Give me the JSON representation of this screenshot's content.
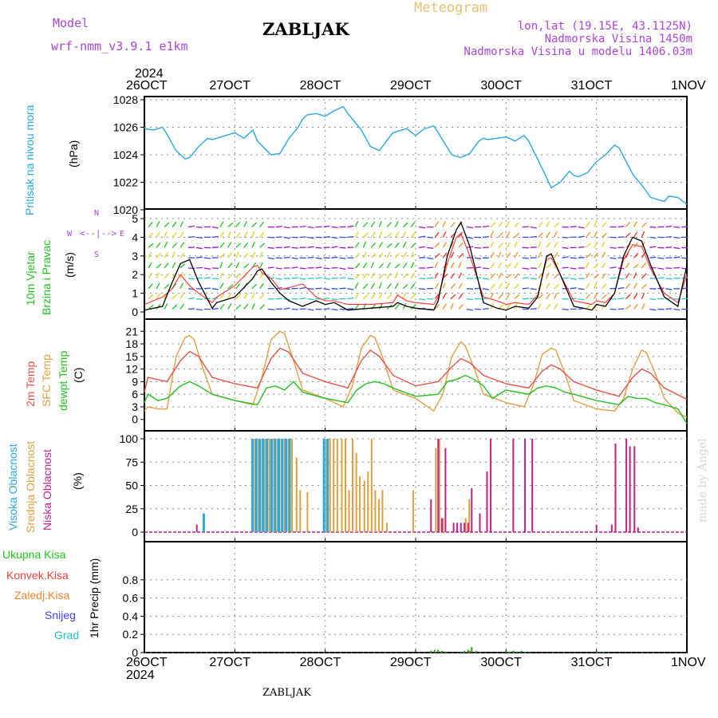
{
  "header": {
    "model_label": "Model",
    "model_name": "wrf-nmm_v3.9.1  e1km",
    "station": "ZABLJAK",
    "chart_kind": "Meteogram",
    "coords": "lon,lat (19.15E, 43.1125N)",
    "altitude": "Nadmorska Visina 1450m",
    "model_altitude": "Nadmorska Visina u modelu 1406.03m"
  },
  "footer": {
    "station": "ZABLJAK",
    "watermark": "made by Angel"
  },
  "axis": {
    "year_top": "2024",
    "year_bottom": "2024",
    "date_ticks": [
      "26OCT",
      "27OCT",
      "28OCT",
      "29OCT",
      "30OCT",
      "31OCT",
      "1NOV"
    ]
  },
  "panel_labels": {
    "pressure": {
      "name": "Pritisak na nivou mora",
      "unit": "(hPa)"
    },
    "wind": {
      "name1": "10m Vjetar",
      "name2": "Brzina i Pravac",
      "unit": "(m/s)",
      "compass": [
        "N",
        "W",
        "E",
        "S"
      ]
    },
    "temp": {
      "l1": "2m Temp",
      "l2": "SFC Temp",
      "l3": "dewpt Temp",
      "unit": "(C)"
    },
    "cloud": {
      "l1": "Visoka Oblacnost",
      "l2": "Srednja Oblacnost",
      "l3": "Niska Oblacnost",
      "unit": "(%)"
    },
    "precip": {
      "legend": [
        "Ukupna Kisa",
        "Konvek.Kisa",
        "Zaledj.Kisa",
        "Snijeg",
        "Grad"
      ],
      "unit": "1hr Precip (mm)"
    }
  },
  "colors": {
    "pressure": "#2aa8e0",
    "wind_speed": "#000000",
    "wind_gust": "#ff3030",
    "temp2m": "#e8504a",
    "sfc_temp": "#e0a040",
    "dewpt": "#22c020",
    "cloud_high": "#2aa8e0",
    "cloud_mid": "#e0a040",
    "cloud_low": "#c0208a",
    "precip_total": "#22a020",
    "precip_conv": "#e84040",
    "precip_frz": "#f08030",
    "precip_snow": "#4040e0",
    "precip_hail": "#20c0c0"
  },
  "chart_data": [
    {
      "type": "line",
      "title": "Pritisak na nivou mora",
      "ylabel": "(hPa)",
      "ylim": [
        1020,
        1028
      ],
      "yticks": [
        1020,
        1022,
        1024,
        1026,
        1028
      ],
      "x_unit": "days since 26OCT 00Z",
      "xlim": [
        0,
        6
      ],
      "series": [
        {
          "name": "Pritisak na nivou mora",
          "x": [
            0,
            0.1,
            0.2,
            0.25,
            0.35,
            0.45,
            0.5,
            0.6,
            0.7,
            0.75,
            0.85,
            1.0,
            1.1,
            1.2,
            1.25,
            1.4,
            1.5,
            1.6,
            1.7,
            1.75,
            1.8,
            1.9,
            2.0,
            2.1,
            2.2,
            2.25,
            2.4,
            2.5,
            2.6,
            2.7,
            2.75,
            2.8,
            2.9,
            3.0,
            3.1,
            3.2,
            3.25,
            3.4,
            3.5,
            3.6,
            3.7,
            3.75,
            3.8,
            3.9,
            4.0,
            4.1,
            4.2,
            4.25,
            4.4,
            4.5,
            4.6,
            4.7,
            4.75,
            4.8,
            4.9,
            5.0,
            5.1,
            5.2,
            5.25,
            5.4,
            5.5,
            5.6,
            5.7,
            5.75,
            5.8,
            5.9,
            6.0
          ],
          "y": [
            1025.9,
            1025.8,
            1026.0,
            1025.5,
            1024.3,
            1023.7,
            1023.8,
            1024.6,
            1025.2,
            1025.1,
            1025.3,
            1025.6,
            1025.2,
            1025.8,
            1025.0,
            1024.0,
            1024.1,
            1025.2,
            1026.0,
            1026.6,
            1026.9,
            1027.0,
            1026.8,
            1027.2,
            1027.5,
            1027.0,
            1025.8,
            1024.6,
            1024.3,
            1025.2,
            1025.6,
            1025.7,
            1025.9,
            1025.4,
            1025.9,
            1026.1,
            1025.6,
            1024.0,
            1023.8,
            1024.1,
            1025.0,
            1025.2,
            1025.1,
            1025.2,
            1025.3,
            1025.0,
            1025.4,
            1025.0,
            1023.0,
            1021.6,
            1022.0,
            1022.8,
            1022.5,
            1022.4,
            1022.7,
            1023.5,
            1024.0,
            1024.7,
            1024.5,
            1022.6,
            1021.8,
            1020.9,
            1020.7,
            1020.6,
            1021.0,
            1020.9,
            1020.4
          ]
        }
      ]
    },
    {
      "type": "line",
      "title": "10m Vjetar Brzina i Pravac",
      "ylabel": "(m/s)",
      "ylim": [
        0,
        5.3
      ],
      "yticks": [
        0,
        1,
        2,
        3,
        4,
        5
      ],
      "x_unit": "days since 26OCT 00Z",
      "xlim": [
        0,
        6
      ],
      "series": [
        {
          "name": "speed",
          "x": [
            0,
            0.2,
            0.3,
            0.4,
            0.5,
            0.6,
            0.75,
            0.8,
            1.0,
            1.2,
            1.25,
            1.3,
            1.4,
            1.5,
            1.6,
            1.75,
            1.9,
            2.0,
            2.1,
            2.25,
            2.5,
            2.75,
            2.8,
            2.9,
            3.0,
            3.2,
            3.25,
            3.35,
            3.45,
            3.5,
            3.6,
            3.75,
            3.9,
            4.0,
            4.1,
            4.25,
            4.35,
            4.45,
            4.5,
            4.6,
            4.75,
            4.85,
            4.95,
            5.0,
            5.1,
            5.2,
            5.3,
            5.4,
            5.5,
            5.6,
            5.75,
            5.9,
            6.0
          ],
          "y": [
            0.1,
            0.3,
            1.5,
            2.6,
            2.8,
            1.6,
            0.2,
            0.5,
            0.8,
            1.8,
            2.2,
            2.3,
            1.6,
            1.0,
            0.6,
            0.3,
            0.6,
            0.4,
            0.5,
            0.1,
            0.2,
            0.3,
            0.5,
            0.3,
            0.2,
            0.1,
            0.6,
            3.0,
            4.4,
            4.8,
            3.5,
            0.5,
            0.2,
            0.1,
            0.3,
            0.2,
            0.8,
            3.0,
            3.1,
            2.0,
            0.3,
            0.2,
            0.1,
            0.4,
            0.3,
            1.0,
            3.0,
            4.0,
            3.8,
            2.5,
            0.8,
            0.3,
            2.5
          ]
        },
        {
          "name": "gust",
          "x": [
            0,
            0.2,
            0.3,
            0.4,
            0.5,
            0.6,
            0.75,
            0.8,
            1.0,
            1.2,
            1.25,
            1.3,
            1.4,
            1.5,
            1.6,
            1.75,
            1.9,
            2.0,
            2.1,
            2.25,
            2.5,
            2.75,
            2.8,
            2.9,
            3.0,
            3.2,
            3.25,
            3.35,
            3.45,
            3.5,
            3.6,
            3.75,
            3.9,
            4.0,
            4.1,
            4.25,
            4.35,
            4.45,
            4.5,
            4.6,
            4.75,
            4.85,
            4.95,
            5.0,
            5.1,
            5.2,
            5.3,
            5.4,
            5.5,
            5.6,
            5.75,
            5.9,
            6.0
          ],
          "y": [
            0.4,
            0.8,
            1.2,
            2.0,
            1.4,
            1.0,
            0.5,
            0.8,
            1.4,
            2.4,
            2.5,
            2.1,
            1.8,
            1.2,
            1.3,
            1.5,
            0.8,
            0.6,
            0.6,
            0.4,
            0.4,
            0.5,
            0.9,
            0.6,
            0.5,
            0.4,
            0.8,
            2.6,
            4.0,
            4.2,
            3.0,
            0.8,
            0.6,
            0.4,
            0.5,
            0.4,
            0.9,
            2.8,
            2.9,
            2.0,
            0.6,
            0.5,
            0.4,
            0.6,
            0.5,
            1.0,
            2.8,
            3.6,
            3.5,
            2.3,
            1.0,
            0.5,
            2.0
          ]
        }
      ]
    },
    {
      "type": "line",
      "title": "2m Temp / SFC Temp / dewpt Temp",
      "ylabel": "(C)",
      "ylim": [
        -1,
        22
      ],
      "yticks": [
        0,
        3,
        6,
        9,
        12,
        15,
        18,
        21
      ],
      "x_unit": "days since 26OCT 00Z",
      "xlim": [
        0,
        6
      ],
      "series": [
        {
          "name": "2m Temp",
          "x": [
            0,
            0.04,
            0.25,
            0.4,
            0.5,
            0.6,
            0.75,
            1.0,
            1.25,
            1.4,
            1.5,
            1.6,
            1.75,
            2.0,
            2.25,
            2.4,
            2.5,
            2.6,
            2.75,
            3.0,
            3.25,
            3.4,
            3.5,
            3.6,
            3.75,
            4.0,
            4.25,
            4.4,
            4.5,
            4.6,
            4.75,
            5.0,
            5.25,
            5.4,
            5.5,
            5.6,
            5.75,
            6.0
          ],
          "y": [
            6.5,
            10.0,
            9.0,
            14.0,
            16.2,
            15.0,
            10.0,
            8.5,
            7.5,
            14.5,
            17.0,
            16.0,
            11.0,
            9.0,
            7.5,
            14.0,
            16.5,
            15.0,
            10.5,
            8.0,
            9.0,
            12.5,
            14.5,
            13.5,
            10.5,
            8.5,
            7.5,
            11.5,
            13.0,
            12.0,
            9.0,
            7.0,
            5.5,
            10.0,
            12.0,
            11.0,
            7.5,
            4.8
          ]
        },
        {
          "name": "SFC Temp",
          "x": [
            0,
            0.04,
            0.15,
            0.25,
            0.35,
            0.45,
            0.5,
            0.55,
            0.65,
            0.75,
            1.0,
            1.2,
            1.3,
            1.4,
            1.5,
            1.55,
            1.65,
            1.75,
            2.0,
            2.2,
            2.3,
            2.4,
            2.5,
            2.55,
            2.65,
            2.75,
            3.0,
            3.2,
            3.3,
            3.4,
            3.5,
            3.55,
            3.65,
            3.75,
            4.0,
            4.2,
            4.3,
            4.4,
            4.5,
            4.55,
            4.65,
            4.75,
            5.0,
            5.2,
            5.3,
            5.4,
            5.5,
            5.55,
            5.65,
            5.75,
            5.9,
            6.0
          ],
          "y": [
            2.0,
            3.0,
            2.5,
            2.5,
            15.0,
            19.5,
            20.0,
            19.0,
            12.0,
            6.0,
            4.5,
            3.5,
            10.0,
            19.0,
            21.0,
            20.5,
            14.0,
            7.0,
            5.0,
            3.0,
            8.0,
            17.0,
            20.0,
            19.5,
            14.0,
            7.0,
            5.0,
            2.0,
            6.0,
            15.0,
            18.5,
            17.5,
            12.0,
            6.0,
            4.0,
            3.0,
            8.0,
            15.5,
            17.0,
            16.5,
            11.0,
            4.5,
            2.5,
            2.0,
            5.0,
            12.0,
            16.5,
            16.0,
            11.0,
            5.0,
            1.5,
            0.5
          ]
        },
        {
          "name": "dewpt Temp",
          "x": [
            0,
            0.04,
            0.15,
            0.25,
            0.4,
            0.5,
            0.6,
            0.75,
            1.0,
            1.25,
            1.35,
            1.45,
            1.55,
            1.65,
            1.75,
            2.0,
            2.25,
            2.35,
            2.45,
            2.55,
            2.65,
            2.75,
            3.0,
            3.25,
            3.35,
            3.45,
            3.55,
            3.65,
            3.75,
            3.85,
            4.0,
            4.25,
            4.35,
            4.45,
            4.55,
            4.65,
            4.75,
            5.0,
            5.25,
            5.35,
            5.45,
            5.55,
            5.65,
            5.75,
            5.9,
            6.0
          ],
          "y": [
            4.0,
            6.0,
            4.5,
            5.0,
            8.0,
            9.0,
            8.0,
            6.0,
            4.5,
            3.5,
            7.5,
            8.0,
            7.0,
            9.0,
            6.5,
            5.0,
            4.0,
            7.0,
            8.5,
            9.0,
            8.5,
            7.5,
            5.5,
            6.0,
            9.0,
            9.5,
            10.5,
            9.5,
            8.0,
            5.0,
            7.0,
            6.0,
            7.5,
            8.0,
            7.5,
            6.5,
            6.0,
            4.5,
            3.5,
            5.5,
            5.0,
            5.0,
            4.0,
            3.5,
            2.5,
            -1.0
          ]
        }
      ]
    },
    {
      "type": "bar",
      "title": "Visoka / Srednja / Niska Oblacnost",
      "ylabel": "(%)",
      "ylim": [
        0,
        100
      ],
      "yticks": [
        0,
        25,
        50,
        75,
        100
      ],
      "x_unit": "days since 26OCT 00Z",
      "xlim": [
        0,
        6
      ],
      "series": [
        {
          "name": "Visoka Oblacnost",
          "x": [
            0.67,
            1.21,
            1.25,
            1.29,
            1.33,
            1.37,
            1.42,
            1.46,
            1.5,
            1.54,
            1.58,
            1.62,
            2.0,
            2.04
          ],
          "y": [
            20,
            100,
            100,
            100,
            100,
            100,
            100,
            100,
            100,
            100,
            100,
            100,
            100,
            100
          ]
        },
        {
          "name": "Srednja Oblacnost",
          "x": [
            1.21,
            1.25,
            1.29,
            1.33,
            1.37,
            1.42,
            1.46,
            1.5,
            1.54,
            1.58,
            1.62,
            1.67,
            1.71,
            1.79,
            2.0,
            2.04,
            2.08,
            2.12,
            2.17,
            2.21,
            2.25,
            2.29,
            2.33,
            2.37,
            2.42,
            2.46,
            2.5,
            2.54,
            2.58,
            2.62,
            2.67,
            2.96,
            3.21,
            3.25,
            3.29,
            3.54,
            3.58
          ],
          "y": [
            100,
            100,
            100,
            100,
            100,
            100,
            100,
            100,
            100,
            100,
            100,
            80,
            45,
            43,
            100,
            100,
            100,
            100,
            100,
            100,
            45,
            100,
            85,
            60,
            55,
            65,
            100,
            45,
            35,
            45,
            10,
            45,
            90,
            100,
            15,
            15,
            35
          ]
        },
        {
          "name": "Niska Oblacnost",
          "x": [
            0.58,
            3.17,
            3.25,
            3.29,
            3.33,
            3.42,
            3.46,
            3.5,
            3.54,
            3.58,
            3.62,
            3.71,
            3.79,
            3.83,
            4.08,
            4.21,
            4.29,
            5.0,
            5.17,
            5.21,
            5.33,
            5.37,
            5.42,
            5.46
          ],
          "y": [
            8,
            35,
            100,
            15,
            90,
            10,
            10,
            10,
            10,
            10,
            47,
            20,
            65,
            100,
            100,
            100,
            100,
            8,
            8,
            95,
            100,
            92,
            92,
            5
          ]
        }
      ]
    },
    {
      "type": "bar",
      "title": "1hr Precip",
      "ylabel": "1hr Precip (mm)",
      "ylim": [
        0,
        1.0
      ],
      "yticks": [
        0,
        0.2,
        0.4,
        0.6,
        0.8
      ],
      "x_unit": "days since 26OCT 00Z",
      "xlim": [
        0,
        6
      ],
      "series": [
        {
          "name": "Ukupna Kisa",
          "x": [
            3.17,
            3.21,
            3.25,
            3.29,
            3.33,
            3.5,
            3.54,
            3.58,
            3.62,
            3.67,
            3.71,
            4.0,
            4.04,
            4.08,
            4.12,
            4.17,
            4.21,
            4.25,
            5.0,
            5.04,
            5.08
          ],
          "y": [
            0.02,
            0.03,
            0.03,
            0.02,
            0.01,
            0.01,
            0.02,
            0.03,
            0.06,
            0.02,
            0.01,
            0.01,
            0.01,
            0.02,
            0.01,
            0.02,
            0.01,
            0.01,
            0.01,
            0.01,
            0.01
          ]
        },
        {
          "name": "Konvek.Kisa",
          "x": [
            3.54,
            3.58
          ],
          "y": [
            0.01,
            0.02
          ]
        }
      ]
    }
  ]
}
